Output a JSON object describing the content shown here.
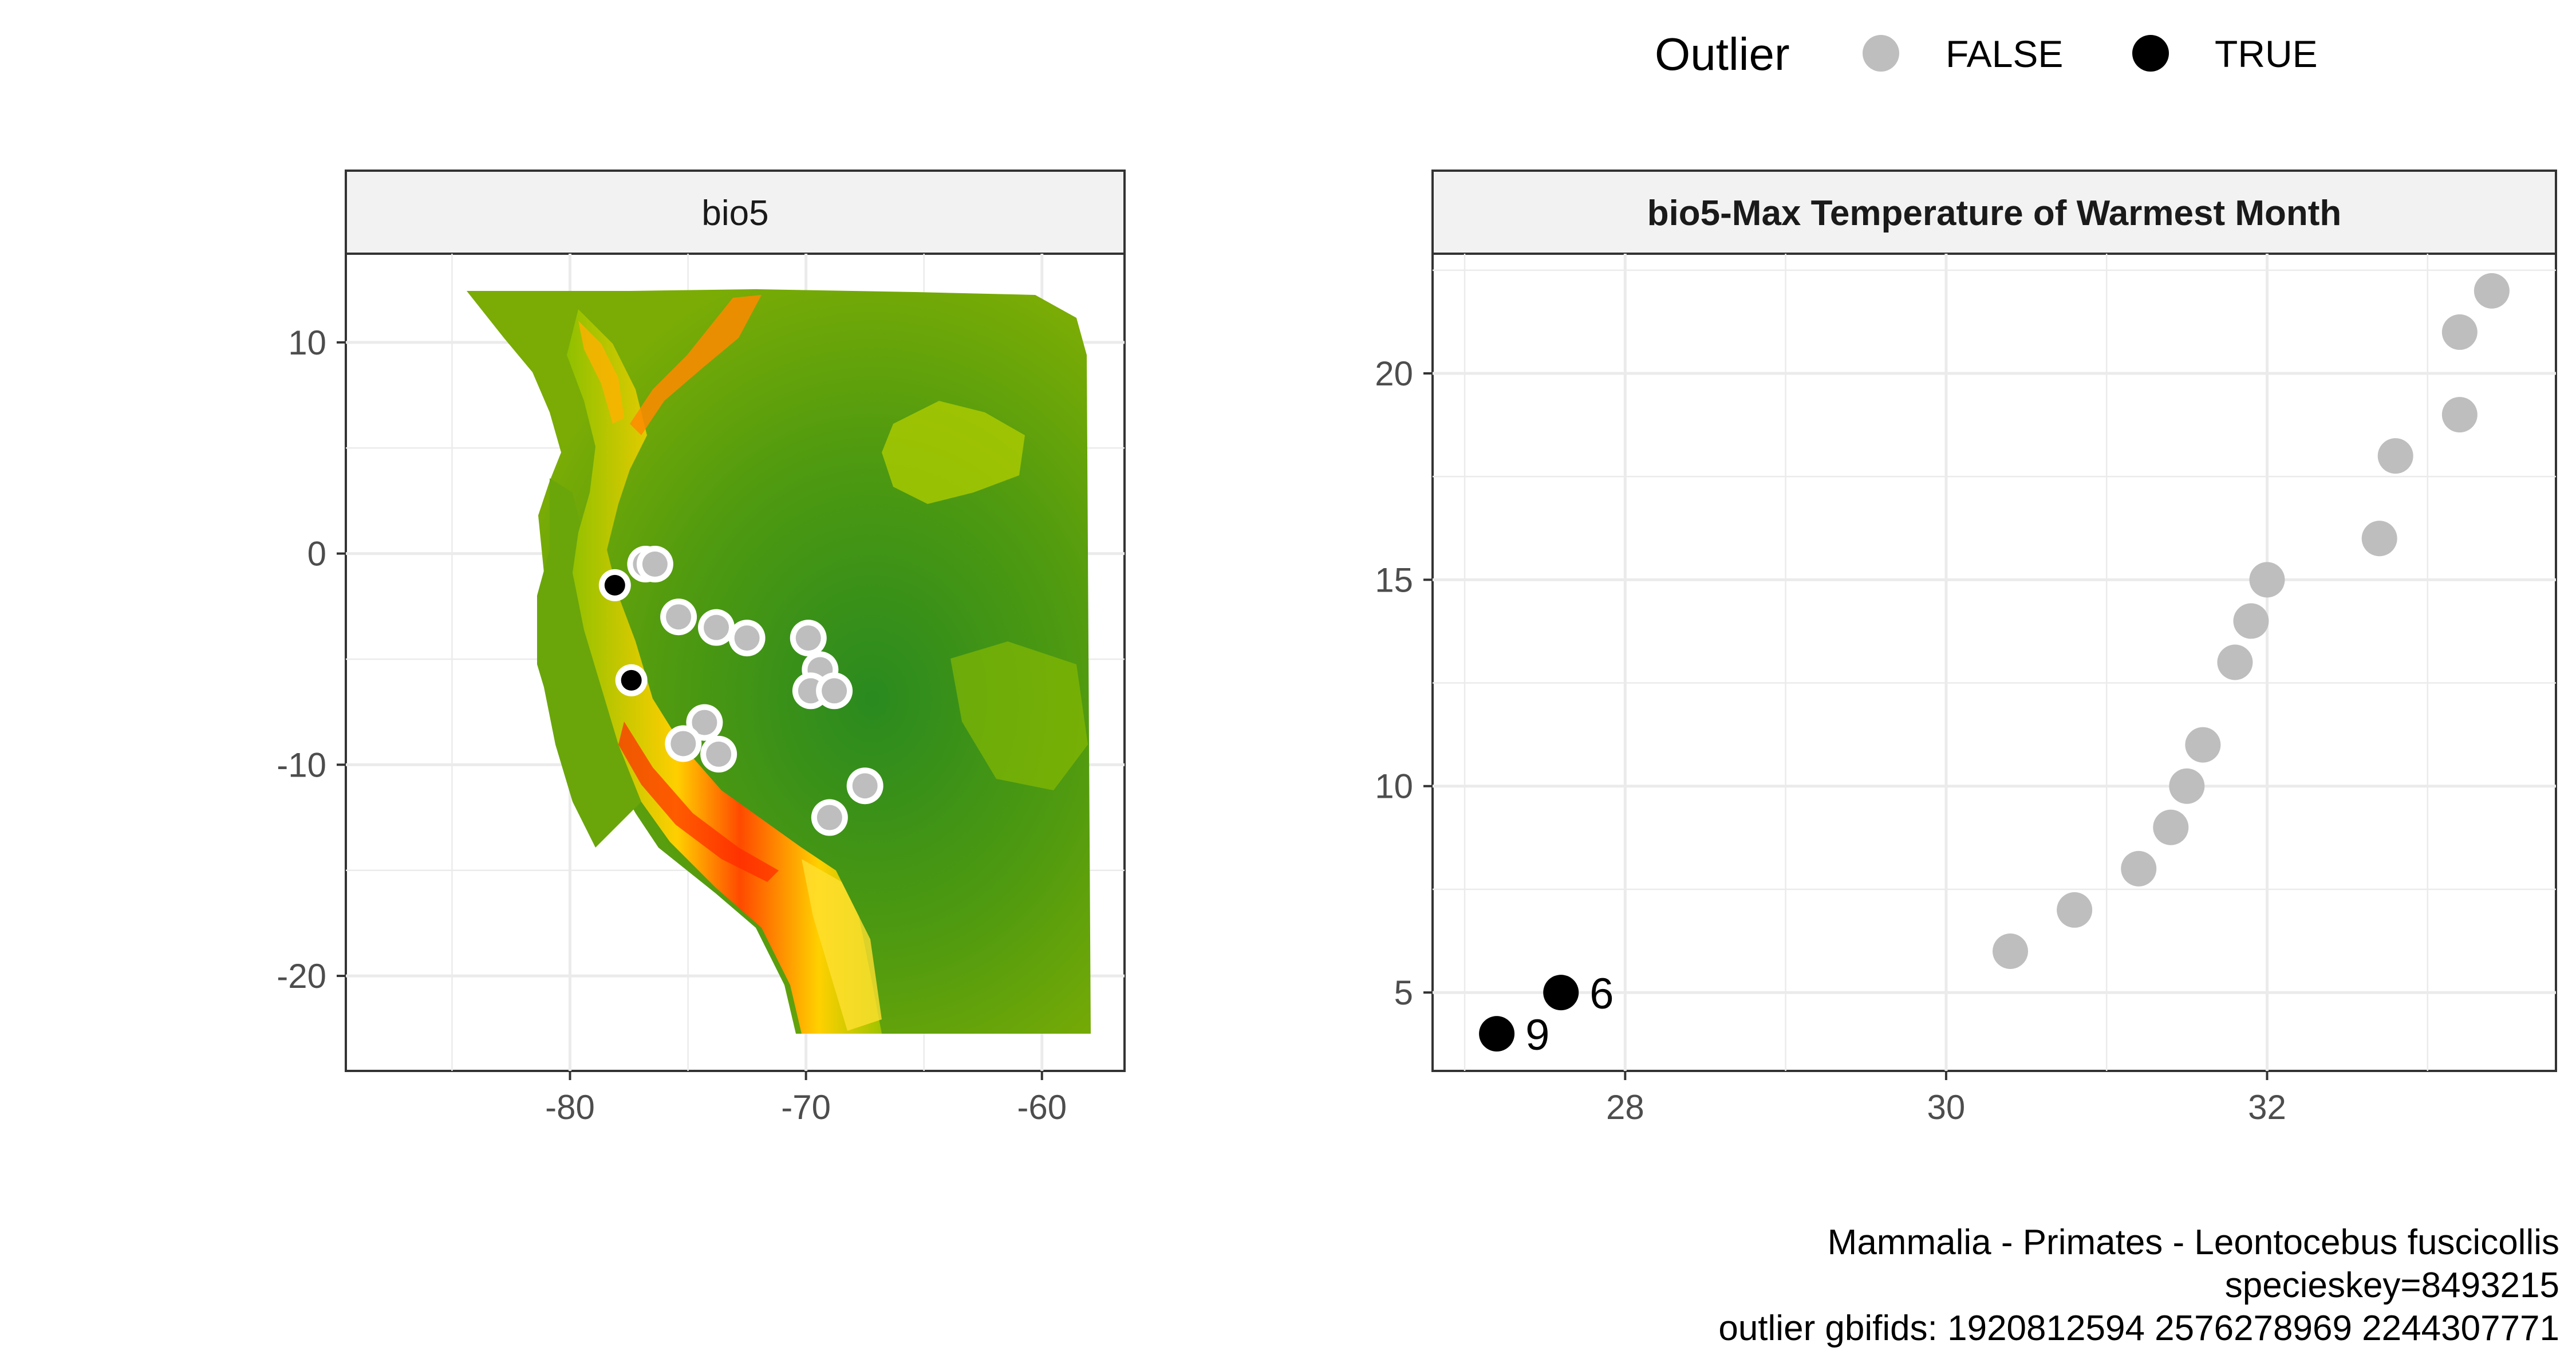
{
  "legend": {
    "title": "Outlier",
    "entries": [
      {
        "label": "FALSE",
        "color": "#bebebe"
      },
      {
        "label": "TRUE",
        "color": "#000000"
      }
    ]
  },
  "map_panel": {
    "strip_title": "bio5",
    "x_ticks": [
      "-80",
      "-70",
      "-60"
    ],
    "y_ticks": [
      "10",
      "0",
      "-10",
      "-20"
    ]
  },
  "scatter_panel": {
    "strip_title": "bio5-Max Temperature of Warmest Month",
    "x_ticks": [
      "28",
      "30",
      "32"
    ],
    "y_ticks": [
      "5",
      "10",
      "15",
      "20"
    ]
  },
  "caption": {
    "line1": "Mammalia - Primates - Leontocebus fuscicollis",
    "line2": "specieskey=8493215",
    "line3": "outlier gbifids: 1920812594 2576278969 2244307771"
  },
  "colors": {
    "false_point": "#bebebe",
    "true_point": "#000000",
    "raster_low": "#2d8a1e",
    "raster_mid": "#a8c800",
    "raster_high": "#ff3300"
  },
  "chart_data": [
    {
      "type": "scatter",
      "title": "bio5",
      "xlabel": "",
      "ylabel": "",
      "xlim": [
        -89.5,
        -56.5
      ],
      "ylim": [
        -24.5,
        14.2
      ],
      "x_ticks": [
        -80,
        -70,
        -60
      ],
      "y_ticks": [
        10,
        0,
        -10,
        -20
      ],
      "grid": true,
      "background": "raster of bio5 (max temperature of warmest month) over tropical South America",
      "series": [
        {
          "name": "FALSE",
          "points": [
            {
              "x": -76.8,
              "y": -0.5
            },
            {
              "x": -76.4,
              "y": -0.5
            },
            {
              "x": -75.4,
              "y": -3.0
            },
            {
              "x": -73.8,
              "y": -3.5
            },
            {
              "x": -72.5,
              "y": -4.0
            },
            {
              "x": -69.9,
              "y": -4.0
            },
            {
              "x": -69.4,
              "y": -5.5
            },
            {
              "x": -69.8,
              "y": -6.5
            },
            {
              "x": -68.8,
              "y": -6.5
            },
            {
              "x": -74.3,
              "y": -8.0
            },
            {
              "x": -75.2,
              "y": -9.0
            },
            {
              "x": -73.7,
              "y": -9.5
            },
            {
              "x": -67.5,
              "y": -11.0
            },
            {
              "x": -69.0,
              "y": -12.5
            }
          ]
        },
        {
          "name": "TRUE",
          "points": [
            {
              "x": -78.1,
              "y": -1.5
            },
            {
              "x": -77.4,
              "y": -6.0
            }
          ]
        }
      ]
    },
    {
      "type": "scatter",
      "title": "bio5-Max Temperature of Warmest Month",
      "xlabel": "",
      "ylabel": "",
      "xlim": [
        26.8,
        33.8
      ],
      "ylim": [
        3.1,
        22.9
      ],
      "x_ticks": [
        28,
        30,
        32
      ],
      "y_ticks": [
        5,
        10,
        15,
        20
      ],
      "grid": true,
      "series": [
        {
          "name": "FALSE",
          "points": [
            {
              "x": 30.4,
              "y": 6
            },
            {
              "x": 30.8,
              "y": 7
            },
            {
              "x": 31.2,
              "y": 8
            },
            {
              "x": 31.4,
              "y": 9
            },
            {
              "x": 31.5,
              "y": 10
            },
            {
              "x": 31.6,
              "y": 11
            },
            {
              "x": 31.8,
              "y": 13
            },
            {
              "x": 31.9,
              "y": 14
            },
            {
              "x": 32.0,
              "y": 15
            },
            {
              "x": 32.7,
              "y": 16
            },
            {
              "x": 32.8,
              "y": 18
            },
            {
              "x": 33.2,
              "y": 19
            },
            {
              "x": 33.2,
              "y": 21
            },
            {
              "x": 33.4,
              "y": 22
            }
          ]
        },
        {
          "name": "TRUE",
          "points": [
            {
              "x": 27.6,
              "y": 5,
              "label": "6"
            },
            {
              "x": 27.2,
              "y": 4,
              "label": "9"
            }
          ]
        }
      ]
    }
  ]
}
